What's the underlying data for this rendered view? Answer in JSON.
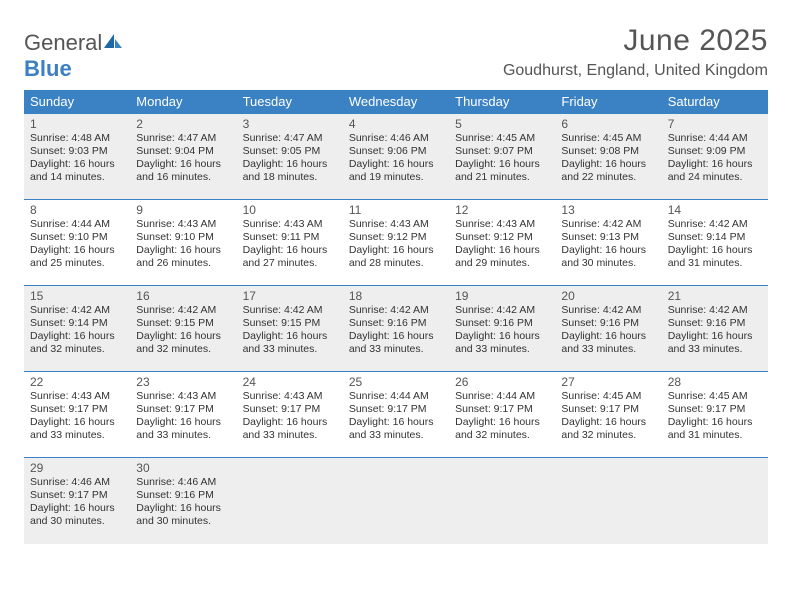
{
  "logo": {
    "text_a": "General",
    "text_b": "Blue"
  },
  "title": "June 2025",
  "location": "Goudhurst, England, United Kingdom",
  "colors": {
    "header_bg": "#3b82c4",
    "header_text": "#ffffff",
    "shaded_row": "#eeeeee",
    "border": "#3b82c4",
    "body_text": "#333333",
    "title_text": "#555555"
  },
  "day_headers": [
    "Sunday",
    "Monday",
    "Tuesday",
    "Wednesday",
    "Thursday",
    "Friday",
    "Saturday"
  ],
  "weeks": [
    {
      "shaded": true,
      "days": [
        {
          "n": "1",
          "sr": "4:48 AM",
          "ss": "9:03 PM",
          "dl": "16 hours and 14 minutes."
        },
        {
          "n": "2",
          "sr": "4:47 AM",
          "ss": "9:04 PM",
          "dl": "16 hours and 16 minutes."
        },
        {
          "n": "3",
          "sr": "4:47 AM",
          "ss": "9:05 PM",
          "dl": "16 hours and 18 minutes."
        },
        {
          "n": "4",
          "sr": "4:46 AM",
          "ss": "9:06 PM",
          "dl": "16 hours and 19 minutes."
        },
        {
          "n": "5",
          "sr": "4:45 AM",
          "ss": "9:07 PM",
          "dl": "16 hours and 21 minutes."
        },
        {
          "n": "6",
          "sr": "4:45 AM",
          "ss": "9:08 PM",
          "dl": "16 hours and 22 minutes."
        },
        {
          "n": "7",
          "sr": "4:44 AM",
          "ss": "9:09 PM",
          "dl": "16 hours and 24 minutes."
        }
      ]
    },
    {
      "shaded": false,
      "days": [
        {
          "n": "8",
          "sr": "4:44 AM",
          "ss": "9:10 PM",
          "dl": "16 hours and 25 minutes."
        },
        {
          "n": "9",
          "sr": "4:43 AM",
          "ss": "9:10 PM",
          "dl": "16 hours and 26 minutes."
        },
        {
          "n": "10",
          "sr": "4:43 AM",
          "ss": "9:11 PM",
          "dl": "16 hours and 27 minutes."
        },
        {
          "n": "11",
          "sr": "4:43 AM",
          "ss": "9:12 PM",
          "dl": "16 hours and 28 minutes."
        },
        {
          "n": "12",
          "sr": "4:43 AM",
          "ss": "9:12 PM",
          "dl": "16 hours and 29 minutes."
        },
        {
          "n": "13",
          "sr": "4:42 AM",
          "ss": "9:13 PM",
          "dl": "16 hours and 30 minutes."
        },
        {
          "n": "14",
          "sr": "4:42 AM",
          "ss": "9:14 PM",
          "dl": "16 hours and 31 minutes."
        }
      ]
    },
    {
      "shaded": true,
      "days": [
        {
          "n": "15",
          "sr": "4:42 AM",
          "ss": "9:14 PM",
          "dl": "16 hours and 32 minutes."
        },
        {
          "n": "16",
          "sr": "4:42 AM",
          "ss": "9:15 PM",
          "dl": "16 hours and 32 minutes."
        },
        {
          "n": "17",
          "sr": "4:42 AM",
          "ss": "9:15 PM",
          "dl": "16 hours and 33 minutes."
        },
        {
          "n": "18",
          "sr": "4:42 AM",
          "ss": "9:16 PM",
          "dl": "16 hours and 33 minutes."
        },
        {
          "n": "19",
          "sr": "4:42 AM",
          "ss": "9:16 PM",
          "dl": "16 hours and 33 minutes."
        },
        {
          "n": "20",
          "sr": "4:42 AM",
          "ss": "9:16 PM",
          "dl": "16 hours and 33 minutes."
        },
        {
          "n": "21",
          "sr": "4:42 AM",
          "ss": "9:16 PM",
          "dl": "16 hours and 33 minutes."
        }
      ]
    },
    {
      "shaded": false,
      "days": [
        {
          "n": "22",
          "sr": "4:43 AM",
          "ss": "9:17 PM",
          "dl": "16 hours and 33 minutes."
        },
        {
          "n": "23",
          "sr": "4:43 AM",
          "ss": "9:17 PM",
          "dl": "16 hours and 33 minutes."
        },
        {
          "n": "24",
          "sr": "4:43 AM",
          "ss": "9:17 PM",
          "dl": "16 hours and 33 minutes."
        },
        {
          "n": "25",
          "sr": "4:44 AM",
          "ss": "9:17 PM",
          "dl": "16 hours and 33 minutes."
        },
        {
          "n": "26",
          "sr": "4:44 AM",
          "ss": "9:17 PM",
          "dl": "16 hours and 32 minutes."
        },
        {
          "n": "27",
          "sr": "4:45 AM",
          "ss": "9:17 PM",
          "dl": "16 hours and 32 minutes."
        },
        {
          "n": "28",
          "sr": "4:45 AM",
          "ss": "9:17 PM",
          "dl": "16 hours and 31 minutes."
        }
      ]
    },
    {
      "shaded": true,
      "days": [
        {
          "n": "29",
          "sr": "4:46 AM",
          "ss": "9:17 PM",
          "dl": "16 hours and 30 minutes."
        },
        {
          "n": "30",
          "sr": "4:46 AM",
          "ss": "9:16 PM",
          "dl": "16 hours and 30 minutes."
        },
        null,
        null,
        null,
        null,
        null
      ]
    }
  ],
  "labels": {
    "sunrise": "Sunrise:",
    "sunset": "Sunset:",
    "daylight": "Daylight:"
  }
}
